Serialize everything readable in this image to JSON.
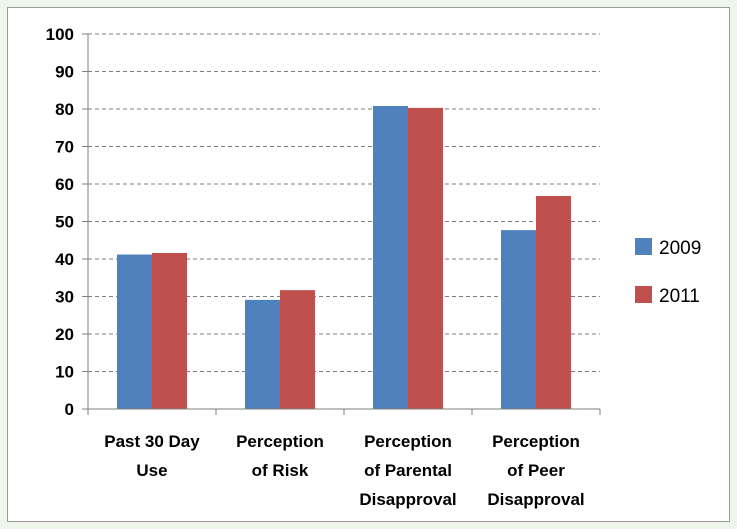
{
  "chart_data": {
    "type": "bar",
    "title": "",
    "xlabel": "",
    "ylabel": "",
    "ylim": [
      0,
      100
    ],
    "ytick_step": 10,
    "grid": true,
    "legend_position": "right",
    "categories": [
      [
        "Past 30 Day",
        "Use"
      ],
      [
        "Perception",
        "of Risk"
      ],
      [
        "Perception",
        "of Parental",
        "Disapproval"
      ],
      [
        "Perception",
        "of Peer",
        "Disapproval"
      ]
    ],
    "series": [
      {
        "name": "2009",
        "color": "#4f81bd",
        "values": [
          41.2,
          29.1,
          80.8,
          47.7
        ]
      },
      {
        "name": "2011",
        "color": "#c0504d",
        "values": [
          41.6,
          31.7,
          80.3,
          56.8
        ]
      }
    ]
  }
}
